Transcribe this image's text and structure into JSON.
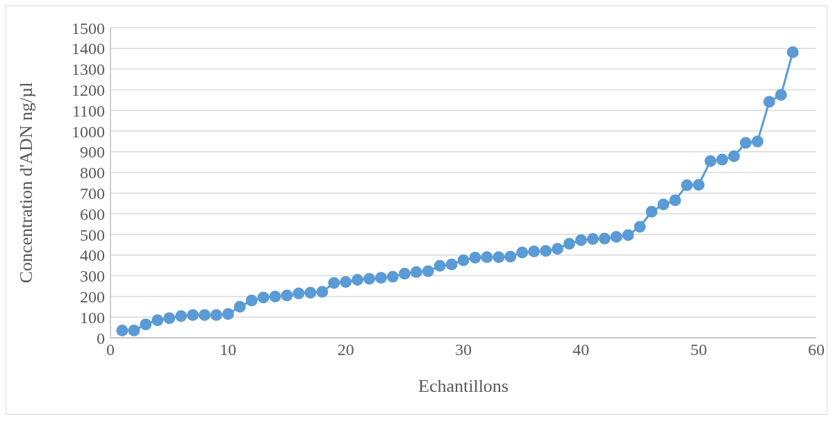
{
  "chart_data": {
    "type": "line",
    "xlabel": "Echantillons",
    "ylabel": "Concentration  d'ADN ng/µl",
    "x": [
      1,
      2,
      3,
      4,
      5,
      6,
      7,
      8,
      9,
      10,
      11,
      12,
      13,
      14,
      15,
      16,
      17,
      18,
      19,
      20,
      21,
      22,
      23,
      24,
      25,
      26,
      27,
      28,
      29,
      30,
      31,
      32,
      33,
      34,
      35,
      36,
      37,
      38,
      39,
      40,
      41,
      42,
      43,
      44,
      45,
      46,
      47,
      48,
      49,
      50,
      51,
      52,
      53,
      54,
      55,
      56,
      57,
      58
    ],
    "series": [
      {
        "color": "#5b9bd5",
        "values": [
          35,
          35,
          65,
          85,
          95,
          105,
          110,
          110,
          110,
          115,
          150,
          180,
          195,
          200,
          205,
          215,
          218,
          222,
          265,
          270,
          280,
          285,
          290,
          295,
          310,
          318,
          322,
          348,
          355,
          375,
          388,
          390,
          390,
          393,
          413,
          418,
          420,
          430,
          455,
          472,
          478,
          480,
          488,
          497,
          537,
          610,
          645,
          665,
          738,
          740,
          855,
          862,
          878,
          943,
          950,
          1142,
          1175,
          1382
        ]
      }
    ],
    "xlim": [
      0,
      60
    ],
    "xticks": [
      0,
      10,
      20,
      30,
      40,
      50,
      60
    ],
    "ylim": [
      0,
      1500
    ],
    "yticks": [
      0,
      100,
      200,
      300,
      400,
      500,
      600,
      700,
      800,
      900,
      1000,
      1100,
      1200,
      1300,
      1400,
      1500
    ],
    "grid": "y",
    "marker": "circle",
    "line_style": "solid",
    "legend": false
  }
}
